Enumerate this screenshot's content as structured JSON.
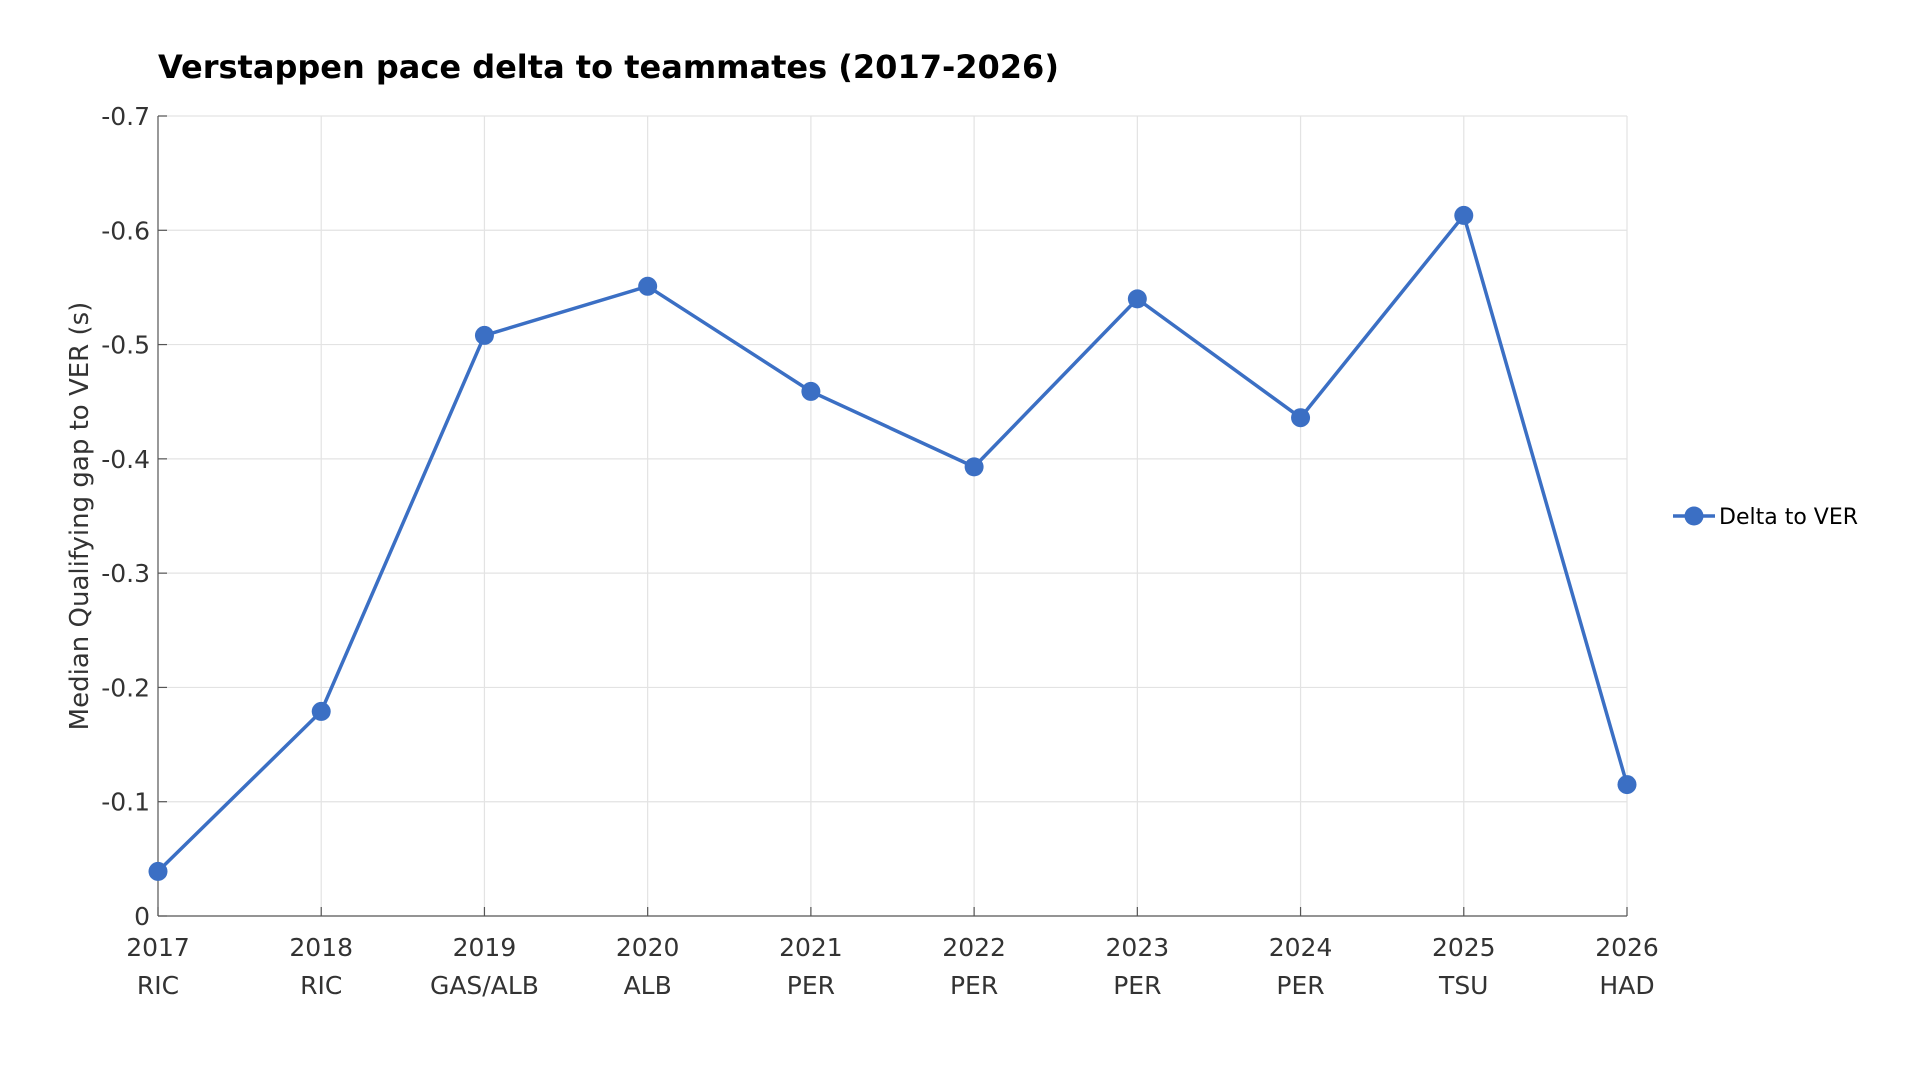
{
  "chart_data": {
    "type": "line",
    "title": "Verstappen pace delta to teammates (2017-2026)",
    "xlabel": "",
    "ylabel": "Median Qualifying gap to VER (s)",
    "x": [
      "2017",
      "2018",
      "2019",
      "2020",
      "2021",
      "2022",
      "2023",
      "2024",
      "2025",
      "2026"
    ],
    "teammates": [
      "RIC",
      "RIC",
      "GAS/ALB",
      "ALB",
      "PER",
      "PER",
      "PER",
      "PER",
      "TSU",
      "HAD"
    ],
    "ylim": [
      0,
      -0.7
    ],
    "y_reversed": true,
    "yticks": [
      0,
      -0.1,
      -0.2,
      -0.3,
      -0.4,
      -0.5,
      -0.6,
      -0.7
    ],
    "ytick_labels": [
      "0",
      "-0.1",
      "-0.2",
      "-0.3",
      "-0.4",
      "-0.5",
      "-0.6",
      "-0.7"
    ],
    "grid": true,
    "legend_position": "right",
    "series": [
      {
        "name": "Delta to VER",
        "color": "#3b6fc4",
        "marker": "circle",
        "values": [
          -0.039,
          -0.179,
          -0.508,
          -0.551,
          -0.459,
          -0.393,
          -0.54,
          -0.436,
          -0.613,
          -0.115
        ]
      }
    ]
  }
}
